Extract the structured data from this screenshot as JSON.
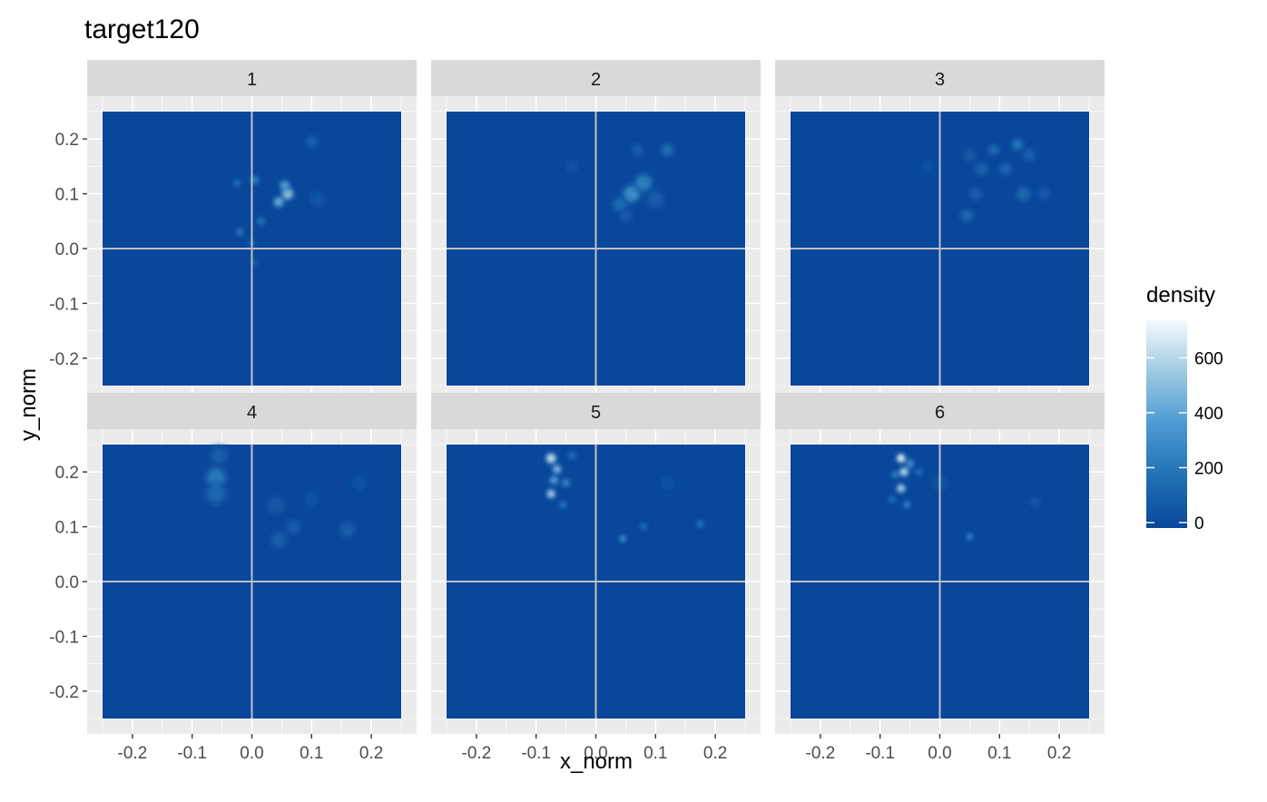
{
  "chart_data": {
    "type": "heatmap",
    "title": "target120",
    "xlabel": "x_norm",
    "ylabel": "y_norm",
    "xlim": [
      -0.25,
      0.25
    ],
    "ylim": [
      -0.25,
      0.25
    ],
    "x_ticks": [
      -0.2,
      -0.1,
      0.0,
      0.1,
      0.2
    ],
    "x_tick_labels": [
      "-0.2",
      "-0.1",
      "0.0",
      "0.1",
      "0.2"
    ],
    "y_ticks": [
      0.2,
      0.1,
      0.0,
      -0.1,
      -0.2
    ],
    "y_tick_labels": [
      "0.2",
      "0.1",
      "0.0",
      "-0.1",
      "-0.2"
    ],
    "grid": true,
    "reference_lines": {
      "x": 0,
      "y": 0
    },
    "facet_layout": {
      "rows": 2,
      "cols": 3
    },
    "legend": {
      "title": "density",
      "placement": "right",
      "range": [
        0,
        760
      ],
      "ticks": [
        0,
        200,
        400,
        600
      ],
      "tick_labels": [
        "0",
        "200",
        "400",
        "600"
      ],
      "low_color": "#08479a",
      "mid_color": "#6baed6",
      "high_color": "#f7fbff"
    },
    "colors": {
      "panel_background": "#ebebeb",
      "strip_background": "#d9d9d9",
      "fill_background": "#08479a",
      "reference_line": "#bfbfbf"
    },
    "facets": [
      {
        "label": "1",
        "hotspots": [
          {
            "x": 0.06,
            "y": 0.1,
            "d": 520,
            "r": 0.008
          },
          {
            "x": 0.045,
            "y": 0.085,
            "d": 430,
            "r": 0.007
          },
          {
            "x": 0.055,
            "y": 0.115,
            "d": 380,
            "r": 0.007
          },
          {
            "x": 0.005,
            "y": 0.125,
            "d": 240,
            "r": 0.006
          },
          {
            "x": -0.025,
            "y": 0.12,
            "d": 200,
            "r": 0.005
          },
          {
            "x": 0.015,
            "y": 0.05,
            "d": 180,
            "r": 0.006
          },
          {
            "x": -0.02,
            "y": 0.03,
            "d": 230,
            "r": 0.005
          },
          {
            "x": 0.0,
            "y": 0.01,
            "d": 160,
            "r": 0.005
          },
          {
            "x": 0.005,
            "y": -0.025,
            "d": 130,
            "r": 0.005
          },
          {
            "x": 0.1,
            "y": 0.195,
            "d": 120,
            "r": 0.008
          },
          {
            "x": 0.11,
            "y": 0.09,
            "d": 70,
            "r": 0.01
          }
        ]
      },
      {
        "label": "2",
        "hotspots": [
          {
            "x": 0.06,
            "y": 0.1,
            "d": 300,
            "r": 0.012
          },
          {
            "x": 0.08,
            "y": 0.12,
            "d": 240,
            "r": 0.012
          },
          {
            "x": 0.12,
            "y": 0.18,
            "d": 170,
            "r": 0.009
          },
          {
            "x": 0.07,
            "y": 0.18,
            "d": 110,
            "r": 0.008
          },
          {
            "x": 0.04,
            "y": 0.08,
            "d": 160,
            "r": 0.01
          },
          {
            "x": 0.1,
            "y": 0.09,
            "d": 100,
            "r": 0.012
          },
          {
            "x": 0.05,
            "y": 0.06,
            "d": 90,
            "r": 0.009
          },
          {
            "x": -0.04,
            "y": 0.15,
            "d": 60,
            "r": 0.008
          }
        ]
      },
      {
        "label": "3",
        "hotspots": [
          {
            "x": 0.13,
            "y": 0.19,
            "d": 200,
            "r": 0.008
          },
          {
            "x": 0.09,
            "y": 0.18,
            "d": 140,
            "r": 0.008
          },
          {
            "x": 0.07,
            "y": 0.145,
            "d": 130,
            "r": 0.009
          },
          {
            "x": 0.11,
            "y": 0.145,
            "d": 150,
            "r": 0.008
          },
          {
            "x": 0.15,
            "y": 0.17,
            "d": 110,
            "r": 0.009
          },
          {
            "x": 0.05,
            "y": 0.17,
            "d": 80,
            "r": 0.009
          },
          {
            "x": 0.14,
            "y": 0.1,
            "d": 140,
            "r": 0.01
          },
          {
            "x": 0.175,
            "y": 0.1,
            "d": 100,
            "r": 0.008
          },
          {
            "x": 0.045,
            "y": 0.06,
            "d": 140,
            "r": 0.009
          },
          {
            "x": 0.06,
            "y": 0.1,
            "d": 100,
            "r": 0.009
          },
          {
            "x": -0.02,
            "y": 0.15,
            "d": 40,
            "r": 0.01
          }
        ]
      },
      {
        "label": "4",
        "hotspots": [
          {
            "x": -0.06,
            "y": 0.19,
            "d": 220,
            "r": 0.014
          },
          {
            "x": -0.06,
            "y": 0.16,
            "d": 150,
            "r": 0.014
          },
          {
            "x": -0.055,
            "y": 0.23,
            "d": 110,
            "r": 0.012
          },
          {
            "x": 0.04,
            "y": 0.14,
            "d": 80,
            "r": 0.012
          },
          {
            "x": 0.07,
            "y": 0.1,
            "d": 90,
            "r": 0.01
          },
          {
            "x": 0.045,
            "y": 0.075,
            "d": 110,
            "r": 0.011
          },
          {
            "x": 0.16,
            "y": 0.095,
            "d": 100,
            "r": 0.011
          },
          {
            "x": 0.18,
            "y": 0.18,
            "d": 50,
            "r": 0.012
          },
          {
            "x": 0.1,
            "y": 0.15,
            "d": 50,
            "r": 0.012
          }
        ]
      },
      {
        "label": "5",
        "hotspots": [
          {
            "x": -0.075,
            "y": 0.225,
            "d": 620,
            "r": 0.007
          },
          {
            "x": -0.065,
            "y": 0.205,
            "d": 480,
            "r": 0.006
          },
          {
            "x": -0.07,
            "y": 0.185,
            "d": 380,
            "r": 0.006
          },
          {
            "x": -0.075,
            "y": 0.16,
            "d": 560,
            "r": 0.006
          },
          {
            "x": -0.05,
            "y": 0.18,
            "d": 260,
            "r": 0.006
          },
          {
            "x": -0.055,
            "y": 0.14,
            "d": 220,
            "r": 0.005
          },
          {
            "x": -0.04,
            "y": 0.23,
            "d": 160,
            "r": 0.006
          },
          {
            "x": 0.045,
            "y": 0.078,
            "d": 310,
            "r": 0.005
          },
          {
            "x": 0.08,
            "y": 0.1,
            "d": 180,
            "r": 0.005
          },
          {
            "x": 0.175,
            "y": 0.105,
            "d": 220,
            "r": 0.005
          },
          {
            "x": 0.12,
            "y": 0.18,
            "d": 40,
            "r": 0.012
          }
        ]
      },
      {
        "label": "6",
        "hotspots": [
          {
            "x": -0.065,
            "y": 0.225,
            "d": 700,
            "r": 0.006
          },
          {
            "x": -0.06,
            "y": 0.2,
            "d": 600,
            "r": 0.006
          },
          {
            "x": -0.065,
            "y": 0.17,
            "d": 560,
            "r": 0.006
          },
          {
            "x": -0.05,
            "y": 0.215,
            "d": 320,
            "r": 0.006
          },
          {
            "x": -0.075,
            "y": 0.195,
            "d": 260,
            "r": 0.005
          },
          {
            "x": -0.035,
            "y": 0.2,
            "d": 200,
            "r": 0.005
          },
          {
            "x": -0.055,
            "y": 0.14,
            "d": 280,
            "r": 0.005
          },
          {
            "x": -0.08,
            "y": 0.15,
            "d": 180,
            "r": 0.005
          },
          {
            "x": 0.05,
            "y": 0.082,
            "d": 260,
            "r": 0.005
          },
          {
            "x": 0.16,
            "y": 0.145,
            "d": 80,
            "r": 0.007
          },
          {
            "x": 0.0,
            "y": 0.18,
            "d": 70,
            "r": 0.01
          }
        ]
      }
    ]
  }
}
